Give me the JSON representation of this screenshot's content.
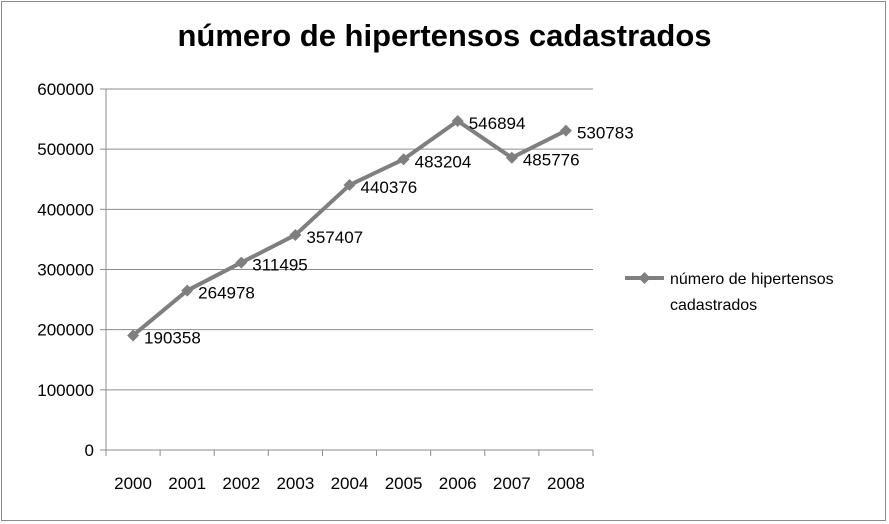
{
  "chart_data": {
    "type": "line",
    "title": "número de hipertensos cadastrados",
    "categories": [
      "2000",
      "2001",
      "2002",
      "2003",
      "2004",
      "2005",
      "2006",
      "2007",
      "2008"
    ],
    "series": [
      {
        "name": "número de hipertensos cadastrados",
        "values": [
          190358,
          264978,
          311495,
          357407,
          440376,
          483204,
          546894,
          485776,
          530783
        ],
        "color": "#7f7f7f"
      }
    ],
    "data_labels": [
      "190358",
      "264978",
      "311495",
      "357407",
      "440376",
      "483204",
      "546894",
      "485776",
      "530783"
    ],
    "ylim": [
      0,
      600000
    ],
    "y_ticks": [
      "0",
      "100000",
      "200000",
      "300000",
      "400000",
      "500000",
      "600000"
    ],
    "grid": "horizontal",
    "legend": {
      "placement": "right",
      "lines": [
        "número de hipertensos",
        "cadastrados"
      ]
    }
  }
}
